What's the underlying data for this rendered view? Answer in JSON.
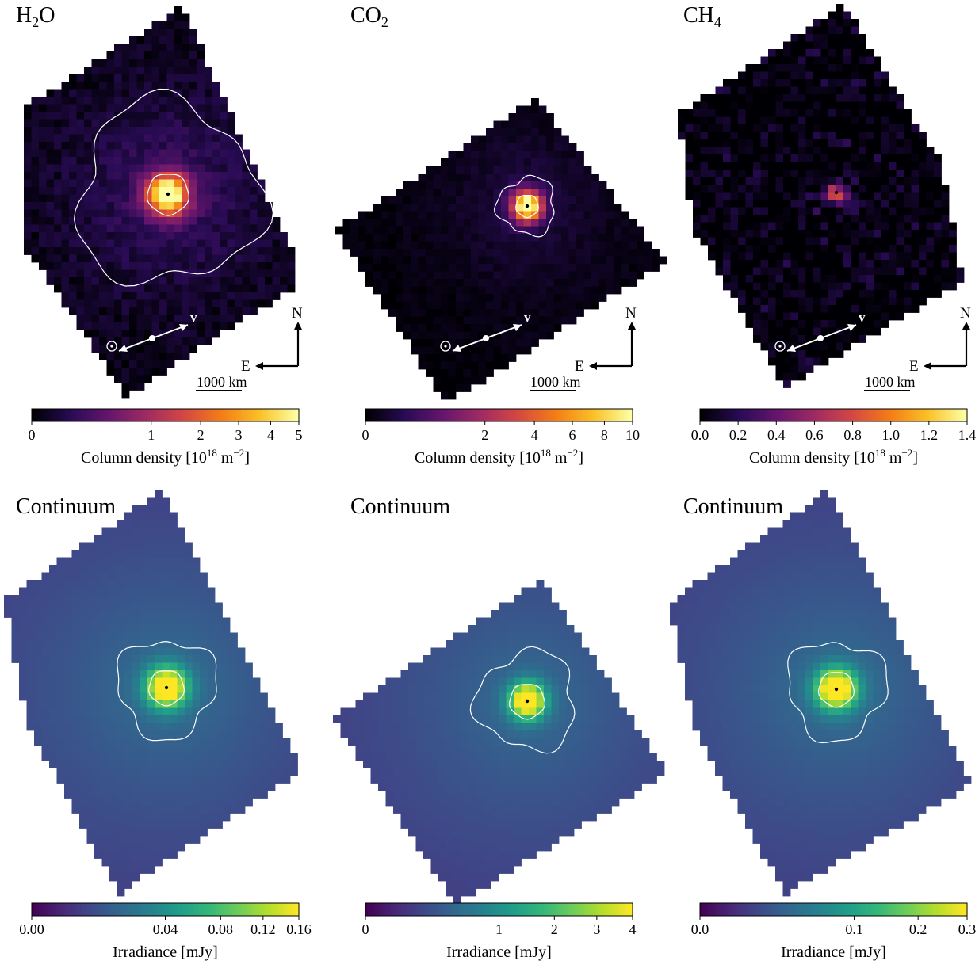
{
  "figure": {
    "panels": [
      {
        "id": "h2o",
        "title": "H2O",
        "title_main": "H",
        "title_sub": "2",
        "title_tail": "O",
        "colormap": "inferno",
        "has_compass": true,
        "compass": {
          "north": "N",
          "east": "E",
          "velocity": "v",
          "scale_label": "1000 km"
        },
        "colorbar": {
          "label_prefix": "Column density [10",
          "label_exp": "18",
          "label_unit": " m",
          "label_unit_exp": "−2",
          "label_close": "]",
          "min": 0,
          "max": 5,
          "scale": "sqrt",
          "ticks": [
            0,
            1,
            2,
            3,
            4,
            5
          ],
          "tick_labels": [
            "0",
            "1",
            "2",
            "3",
            "4",
            "5"
          ]
        }
      },
      {
        "id": "co2",
        "title": "CO2",
        "title_main": "CO",
        "title_sub": "2",
        "title_tail": "",
        "colormap": "inferno",
        "has_compass": true,
        "compass": {
          "north": "N",
          "east": "E",
          "velocity": "v",
          "scale_label": "1000 km"
        },
        "colorbar": {
          "label_prefix": "Column density [10",
          "label_exp": "18",
          "label_unit": " m",
          "label_unit_exp": "−2",
          "label_close": "]",
          "min": 0,
          "max": 10,
          "scale": "sqrt",
          "ticks": [
            0,
            2,
            4,
            6,
            8,
            10
          ],
          "tick_labels": [
            "0",
            "2",
            "4",
            "6",
            "8",
            "10"
          ]
        }
      },
      {
        "id": "ch4",
        "title": "CH4",
        "title_main": "CH",
        "title_sub": "4",
        "title_tail": "",
        "colormap": "inferno",
        "has_compass": true,
        "compass": {
          "north": "N",
          "east": "E",
          "velocity": "v",
          "scale_label": "1000 km"
        },
        "colorbar": {
          "label_prefix": "Column density [10",
          "label_exp": "18",
          "label_unit": " m",
          "label_unit_exp": "−2",
          "label_close": "]",
          "min": 0,
          "max": 1.4,
          "scale": "linear",
          "ticks": [
            0,
            0.2,
            0.4,
            0.6,
            0.8,
            1.0,
            1.2,
            1.4
          ],
          "tick_labels": [
            "0.0",
            "0.2",
            "0.4",
            "0.6",
            "0.8",
            "1.0",
            "1.2",
            "1.4"
          ]
        }
      },
      {
        "id": "cont1",
        "title": "Continuum",
        "colormap": "viridis",
        "has_compass": false,
        "colorbar": {
          "label": "Irradiance [mJy]",
          "min": 0,
          "max": 0.16,
          "scale": "sqrt",
          "ticks": [
            0,
            0.04,
            0.08,
            0.12,
            0.16
          ],
          "tick_labels": [
            "0.00",
            "0.04",
            "0.08",
            "0.12",
            "0.16"
          ]
        }
      },
      {
        "id": "cont2",
        "title": "Continuum",
        "colormap": "viridis",
        "has_compass": false,
        "colorbar": {
          "label": "Irradiance [mJy]",
          "min": 0,
          "max": 4,
          "scale": "sqrt",
          "ticks": [
            0,
            1,
            2,
            3,
            4
          ],
          "tick_labels": [
            "0",
            "1",
            "2",
            "3",
            "4"
          ]
        }
      },
      {
        "id": "cont3",
        "title": "Continuum",
        "colormap": "viridis",
        "has_compass": false,
        "colorbar": {
          "label": "Irradiance [mJy]",
          "min": 0,
          "max": 0.3,
          "scale": "sqrt",
          "ticks": [
            0,
            0.1,
            0.2,
            0.3
          ],
          "tick_labels": [
            "0.0",
            "0.1",
            "0.2",
            "0.3"
          ]
        }
      }
    ]
  },
  "chart_data": [
    {
      "type": "heatmap",
      "title": "H2O",
      "colorbar_label": "Column density [10^18 m^-2]",
      "value_range": [
        0,
        5
      ],
      "colorbar_ticks": [
        0,
        1,
        2,
        3,
        4,
        5
      ],
      "colormap": "inferno",
      "annotations": [
        "N",
        "E",
        "v",
        "1000 km"
      ]
    },
    {
      "type": "heatmap",
      "title": "CO2",
      "colorbar_label": "Column density [10^18 m^-2]",
      "value_range": [
        0,
        10
      ],
      "colorbar_ticks": [
        0,
        2,
        4,
        6,
        8,
        10
      ],
      "colormap": "inferno",
      "annotations": [
        "N",
        "E",
        "v",
        "1000 km"
      ]
    },
    {
      "type": "heatmap",
      "title": "CH4",
      "colorbar_label": "Column density [10^18 m^-2]",
      "value_range": [
        0,
        1.4
      ],
      "colorbar_ticks": [
        0.0,
        0.2,
        0.4,
        0.6,
        0.8,
        1.0,
        1.2,
        1.4
      ],
      "colormap": "inferno",
      "annotations": [
        "N",
        "E",
        "v",
        "1000 km"
      ]
    },
    {
      "type": "heatmap",
      "title": "Continuum",
      "colorbar_label": "Irradiance [mJy]",
      "value_range": [
        0,
        0.16
      ],
      "colorbar_ticks": [
        0.0,
        0.04,
        0.08,
        0.12,
        0.16
      ],
      "colormap": "viridis"
    },
    {
      "type": "heatmap",
      "title": "Continuum",
      "colorbar_label": "Irradiance [mJy]",
      "value_range": [
        0,
        4
      ],
      "colorbar_ticks": [
        0,
        1,
        2,
        3,
        4
      ],
      "colormap": "viridis"
    },
    {
      "type": "heatmap",
      "title": "Continuum",
      "colorbar_label": "Irradiance [mJy]",
      "value_range": [
        0,
        0.3
      ],
      "colorbar_ticks": [
        0.0,
        0.1,
        0.2,
        0.3
      ],
      "colormap": "viridis"
    }
  ]
}
